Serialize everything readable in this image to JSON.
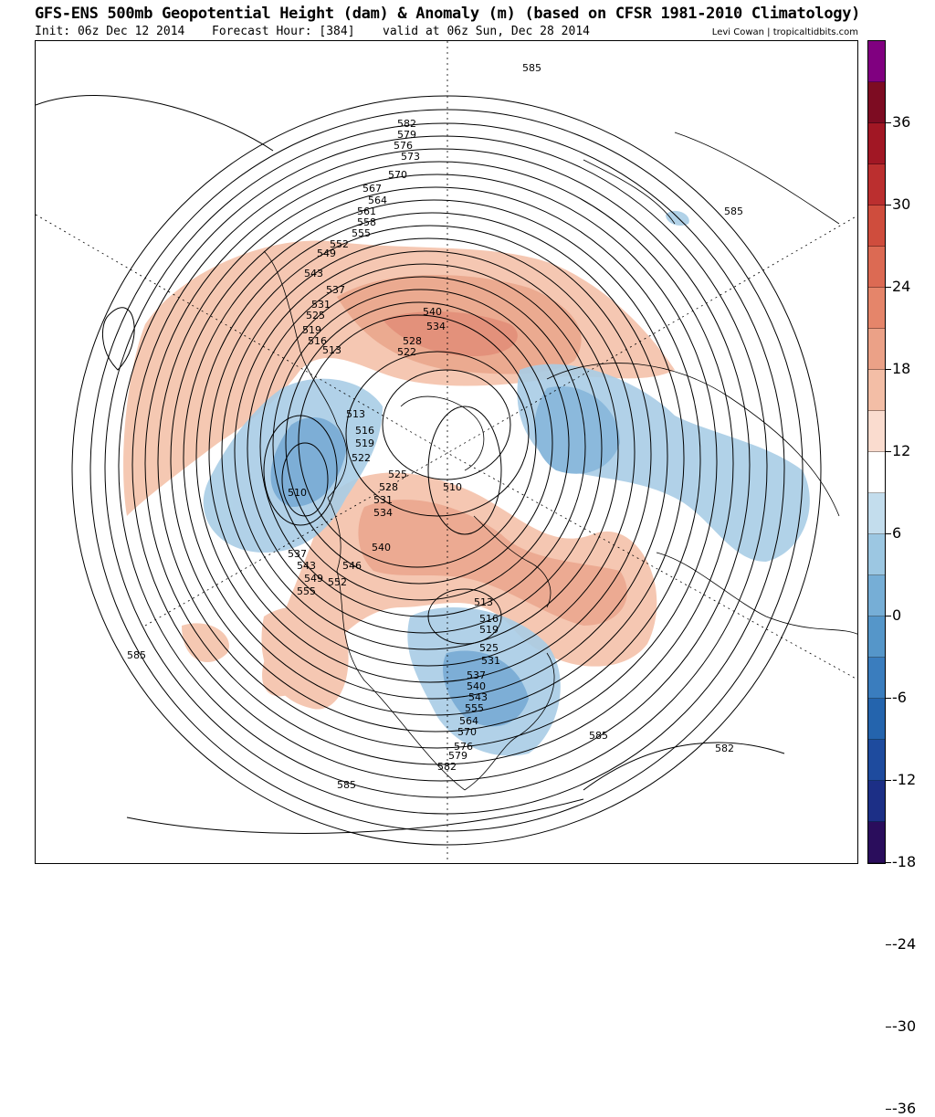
{
  "header": {
    "title": "GFS-ENS 500mb Geopotential Height (dam) & Anomaly (m) (based on CFSR 1981-2010 Climatology)",
    "init": "Init: 06z Dec 12 2014",
    "forecast_hour": "Forecast Hour: [384]",
    "valid": "valid at 06z Sun, Dec 28 2014",
    "credit": "Levi Cowan | tropicaltidbits.com"
  },
  "colorbar": {
    "colors": [
      "#2a0d5c",
      "#1c2f86",
      "#1e4b9e",
      "#2464ad",
      "#3a7dbe",
      "#5596c9",
      "#76aed6",
      "#9cc7e2",
      "#c3dded",
      "#ffffff",
      "#fadccf",
      "#f3bea6",
      "#eba187",
      "#e5856a",
      "#dc6a53",
      "#cf4d3d",
      "#bb2f2f",
      "#a11724",
      "#7d0c22",
      "#800080"
    ],
    "tick_labels": [
      "36",
      "30",
      "24",
      "18",
      "12",
      "6",
      "0",
      "-6",
      "-12",
      "-18",
      "-24",
      "-30",
      "-36"
    ]
  },
  "contour_labels": [
    "585",
    "582",
    "579",
    "576",
    "573",
    "570",
    "567",
    "564",
    "561",
    "558",
    "555",
    "552",
    "549",
    "543",
    "540",
    "537",
    "534",
    "531",
    "528",
    "525",
    "522",
    "519",
    "516",
    "513",
    "510",
    "546"
  ]
}
